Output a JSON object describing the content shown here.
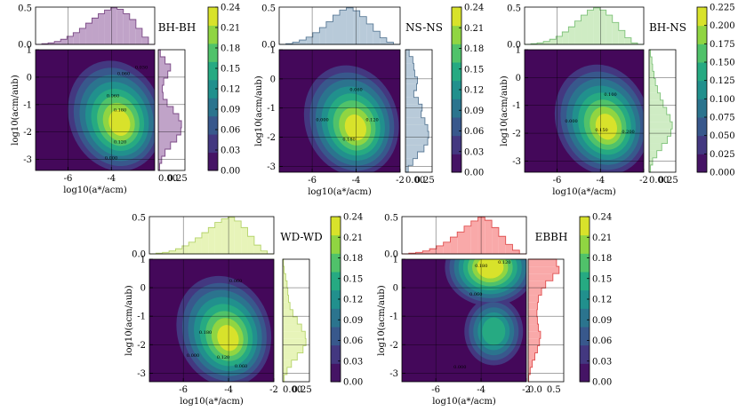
{
  "chart_data": [
    {
      "type": "heatmap",
      "title": "BH-BH",
      "xlabel": "log10(a*/acm)",
      "ylabel": "log10(acm/aub)",
      "xlim": [
        -7.5,
        -2
      ],
      "ylim": [
        -3.4,
        1
      ],
      "xticks": [
        "-6",
        "-4"
      ],
      "yticks": [
        "1",
        "0",
        "-1",
        "-2",
        "-3"
      ],
      "peak": {
        "x": -3.6,
        "y": -1.7
      },
      "contour_labels": [
        "0.060",
        "0.030",
        "0.180",
        "0.060",
        "0.120",
        "0.000"
      ],
      "colorbar": {
        "min": 0,
        "max": 0.24,
        "ticks": [
          "0.24",
          "0.21",
          "0.18",
          "0.15",
          "0.12",
          "0.09",
          "0.06",
          "0.03",
          "0.00"
        ]
      },
      "top_hist": {
        "ylim": [
          0,
          0.5
        ],
        "yticks": [
          "0.5",
          "0.0"
        ],
        "color": "#c0a3c8",
        "edge": "#7b4a86",
        "values": [
          0.0,
          0.01,
          0.02,
          0.04,
          0.07,
          0.11,
          0.16,
          0.22,
          0.29,
          0.36,
          0.42,
          0.47,
          0.5,
          0.48,
          0.42,
          0.34,
          0.22,
          0.1,
          0.0
        ]
      },
      "right_hist": {
        "xticks": [
          "0.00",
          "0.25"
        ],
        "color": "#c0a3c8",
        "edge": "#7b4a86",
        "values": [
          0.03,
          0.1,
          0.18,
          0.14,
          0.08,
          0.06,
          0.07,
          0.13,
          0.22,
          0.3,
          0.34,
          0.33,
          0.27,
          0.18,
          0.1,
          0.05,
          0.02
        ]
      }
    },
    {
      "type": "heatmap",
      "title": "NS-NS",
      "xlabel": "log10(a*/acm)",
      "ylabel": "log10(acm/aub)",
      "xlim": [
        -7.5,
        -2
      ],
      "ylim": [
        -3.2,
        1
      ],
      "xticks": [
        "-6",
        "-4",
        "-2"
      ],
      "yticks": [
        "1",
        "0",
        "-1",
        "-2",
        "-3"
      ],
      "peak": {
        "x": -4.0,
        "y": -1.7
      },
      "contour_labels": [
        "0.060",
        "0.000",
        "0.120",
        "0.180"
      ],
      "colorbar": {
        "min": 0,
        "max": 0.24,
        "ticks": [
          "0.24",
          "0.21",
          "0.18",
          "0.15",
          "0.12",
          "0.09",
          "0.06",
          "0.03",
          "0.00"
        ]
      },
      "top_hist": {
        "ylim": [
          0,
          0.5
        ],
        "yticks": [
          "0.5",
          "0.0"
        ],
        "color": "#b8cad9",
        "edge": "#5a7a96",
        "values": [
          0.0,
          0.01,
          0.03,
          0.06,
          0.1,
          0.16,
          0.23,
          0.31,
          0.4,
          0.47,
          0.5,
          0.46,
          0.38,
          0.28,
          0.18,
          0.09,
          0.03,
          0.0
        ]
      },
      "right_hist": {
        "xticks": [
          "0.00",
          "0.25"
        ],
        "color": "#b8cad9",
        "edge": "#5a7a96",
        "values": [
          0.04,
          0.08,
          0.09,
          0.1,
          0.13,
          0.12,
          0.09,
          0.14,
          0.18,
          0.17,
          0.21,
          0.24,
          0.25,
          0.24,
          0.2,
          0.13,
          0.08,
          0.03
        ]
      }
    },
    {
      "type": "heatmap",
      "title": "BH-NS",
      "xlabel": "log10(a*/acm)",
      "ylabel": "log10(acm/aub)",
      "xlim": [
        -7.5,
        -2
      ],
      "ylim": [
        -3.4,
        1
      ],
      "xticks": [
        "-6",
        "-4",
        "-2"
      ],
      "yticks": [
        "1",
        "0",
        "-1",
        "-2",
        "-3"
      ],
      "peak": {
        "x": -3.7,
        "y": -1.8
      },
      "contour_labels": [
        "0.100",
        "0.000",
        "0.150",
        "0.200"
      ],
      "colorbar": {
        "min": 0,
        "max": 0.225,
        "ticks": [
          "0.225",
          "0.200",
          "0.175",
          "0.150",
          "0.125",
          "0.100",
          "0.075",
          "0.050",
          "0.025",
          "0.000"
        ]
      },
      "top_hist": {
        "ylim": [
          0,
          0.5
        ],
        "yticks": [
          "0.5",
          "0.0"
        ],
        "color": "#cfecc4",
        "edge": "#7fc27a",
        "values": [
          0.0,
          0.01,
          0.02,
          0.04,
          0.07,
          0.11,
          0.17,
          0.24,
          0.32,
          0.4,
          0.47,
          0.5,
          0.47,
          0.4,
          0.3,
          0.19,
          0.09,
          0.02,
          0.0
        ]
      },
      "right_hist": {
        "xticks": [
          "0.00",
          "0.25"
        ],
        "color": "#cfecc4",
        "edge": "#7fc27a",
        "values": [
          0.02,
          0.04,
          0.05,
          0.07,
          0.09,
          0.12,
          0.16,
          0.2,
          0.25,
          0.3,
          0.33,
          0.31,
          0.26,
          0.18,
          0.11,
          0.05,
          0.02
        ]
      }
    },
    {
      "type": "heatmap",
      "title": "WD-WD",
      "xlabel": "log10(a*/acm)",
      "ylabel": "log10(acm/aub)",
      "xlim": [
        -7.5,
        -2
      ],
      "ylim": [
        -3.3,
        1
      ],
      "xticks": [
        "-6",
        "-4",
        "-2"
      ],
      "yticks": [
        "1",
        "0",
        "-1",
        "-2",
        "-3"
      ],
      "peak": {
        "x": -4.0,
        "y": -1.8
      },
      "contour_labels": [
        "0.060",
        "0.180",
        "0.000",
        "0.120",
        "0.060"
      ],
      "colorbar": {
        "min": 0,
        "max": 0.24,
        "ticks": [
          "0.24",
          "0.21",
          "0.18",
          "0.15",
          "0.12",
          "0.09",
          "0.06",
          "0.03",
          "0.00"
        ]
      },
      "top_hist": {
        "ylim": [
          0,
          0.5
        ],
        "yticks": [
          "0.5",
          "0.0"
        ],
        "color": "#e7f4b9",
        "edge": "#b5d36b",
        "values": [
          0.0,
          0.01,
          0.02,
          0.04,
          0.07,
          0.11,
          0.16,
          0.22,
          0.29,
          0.36,
          0.43,
          0.48,
          0.5,
          0.45,
          0.36,
          0.24,
          0.12,
          0.04,
          0.0
        ]
      },
      "right_hist": {
        "xticks": [
          "0.00",
          "0.25"
        ],
        "color": "#e7f4b9",
        "edge": "#b5d36b",
        "values": [
          0.01,
          0.02,
          0.04,
          0.06,
          0.07,
          0.08,
          0.1,
          0.14,
          0.2,
          0.26,
          0.31,
          0.32,
          0.28,
          0.2,
          0.12,
          0.06,
          0.02
        ]
      }
    },
    {
      "type": "heatmap",
      "title": "EBBH",
      "xlabel": "log10(a*/acm)",
      "ylabel": "log10(acm/aub)",
      "xlim": [
        -7.5,
        -2
      ],
      "ylim": [
        -3.3,
        1
      ],
      "xticks": [
        "-6",
        "-4",
        "-2"
      ],
      "yticks": [
        "1",
        "0",
        "-1",
        "-2",
        "-3"
      ],
      "peak": {
        "x": -3.6,
        "y": 0.9
      },
      "contour_labels": [
        "0.180",
        "0.120",
        "0.060",
        "0.000"
      ],
      "colorbar": {
        "min": 0,
        "max": 0.24,
        "ticks": [
          "0.24",
          "0.21",
          "0.18",
          "0.15",
          "0.12",
          "0.09",
          "0.06",
          "0.03",
          "0.00"
        ]
      },
      "top_hist": {
        "ylim": [
          0,
          0.5
        ],
        "yticks": [
          "0.5",
          "0.0"
        ],
        "color": "#f9a9a9",
        "edge": "#e05050",
        "values": [
          0.0,
          0.01,
          0.02,
          0.04,
          0.07,
          0.11,
          0.16,
          0.23,
          0.3,
          0.38,
          0.45,
          0.5,
          0.46,
          0.36,
          0.24,
          0.13,
          0.05,
          0.0
        ]
      },
      "right_hist": {
        "xticks": [
          "0.0",
          "0.5"
        ],
        "color": "#f9a9a9",
        "edge": "#e05050",
        "values": [
          0.55,
          0.6,
          0.48,
          0.34,
          0.26,
          0.2,
          0.18,
          0.17,
          0.18,
          0.2,
          0.24,
          0.22,
          0.18,
          0.13,
          0.08,
          0.04,
          0.01
        ]
      }
    }
  ]
}
